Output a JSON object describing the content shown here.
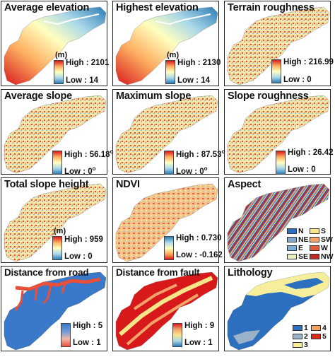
{
  "panels": [
    {
      "title": "Average elevation",
      "unit": "(m)",
      "high": "High : 2101",
      "low": "Low : 14",
      "ramp": [
        "#d7191c",
        "#fdae61",
        "#ffffbf",
        "#abd9e9",
        "#2c7bb6"
      ]
    },
    {
      "title": "Highest elevation",
      "unit": "(m)",
      "high": "High : 2130",
      "low": "Low : 14",
      "ramp": [
        "#d7191c",
        "#fdae61",
        "#ffffbf",
        "#abd9e9",
        "#2c7bb6"
      ]
    },
    {
      "title": "Terrain roughness",
      "unit": "",
      "high": "High : 216.99",
      "low": "Low : 0",
      "ramp": [
        "#d7191c",
        "#fdae61",
        "#ffffbf",
        "#abd9e9",
        "#2c7bb6"
      ]
    },
    {
      "title": "Average slope",
      "unit": "",
      "high": "High : 56.18",
      "low": "Low : 0",
      "sup": "o",
      "ramp": [
        "#d7191c",
        "#fdae61",
        "#ffffbf",
        "#abd9e9",
        "#2c7bb6"
      ]
    },
    {
      "title": "Maximum slope",
      "unit": "",
      "high": "High : 87.53",
      "low": "Low : 0",
      "sup": "o",
      "ramp": [
        "#d7191c",
        "#fdae61",
        "#ffffbf",
        "#abd9e9",
        "#2c7bb6"
      ]
    },
    {
      "title": "Slope roughness",
      "unit": "",
      "high": "High : 26.42",
      "low": "Low : 0",
      "ramp": [
        "#d7191c",
        "#fdae61",
        "#ffffbf",
        "#abd9e9",
        "#2c7bb6"
      ]
    },
    {
      "title": "Total slope height",
      "unit": "(m)",
      "high": "High : 959",
      "low": "Low : 0",
      "ramp": [
        "#d7191c",
        "#fdae61",
        "#ffffbf",
        "#abd9e9",
        "#2c7bb6"
      ]
    },
    {
      "title": "NDVI",
      "unit": "",
      "high": "High : 0.730",
      "low": "Low : -0.162",
      "ramp": [
        "#2c7bb6",
        "#abd9e9",
        "#ffffbf",
        "#fdae61",
        "#d7191c"
      ]
    },
    {
      "title": "Aspect",
      "categories": [
        "N",
        "NE",
        "E",
        "SE",
        "S",
        "SW",
        "W",
        "NW"
      ],
      "cat_colors": [
        "#2c6fbf",
        "#88a7cc",
        "#7fb0d8",
        "#e8f0c0",
        "#f7e58a",
        "#f4a36a",
        "#e45b3a",
        "#c0282a"
      ]
    },
    {
      "title": "Distance from road",
      "unit": "",
      "high": "High : 5",
      "low": "Low : 1",
      "ramp": [
        "#3a78c9",
        "#6c9ad6",
        "#f2b8a6",
        "#e8503a"
      ]
    },
    {
      "title": "Distance from fault",
      "unit": "",
      "high": "High : 9",
      "low": "Low : 1",
      "ramp": [
        "#d7191c",
        "#f4a36a",
        "#f7e58a",
        "#abd9e9",
        "#2c7bb6"
      ]
    },
    {
      "title": "Lithology",
      "categories": [
        "1",
        "2",
        "3",
        "4",
        "5"
      ],
      "cat_colors": [
        "#2c6fbf",
        "#9bb3c9",
        "#f7ee9c",
        "#f4a36a",
        "#d7301f"
      ]
    }
  ]
}
